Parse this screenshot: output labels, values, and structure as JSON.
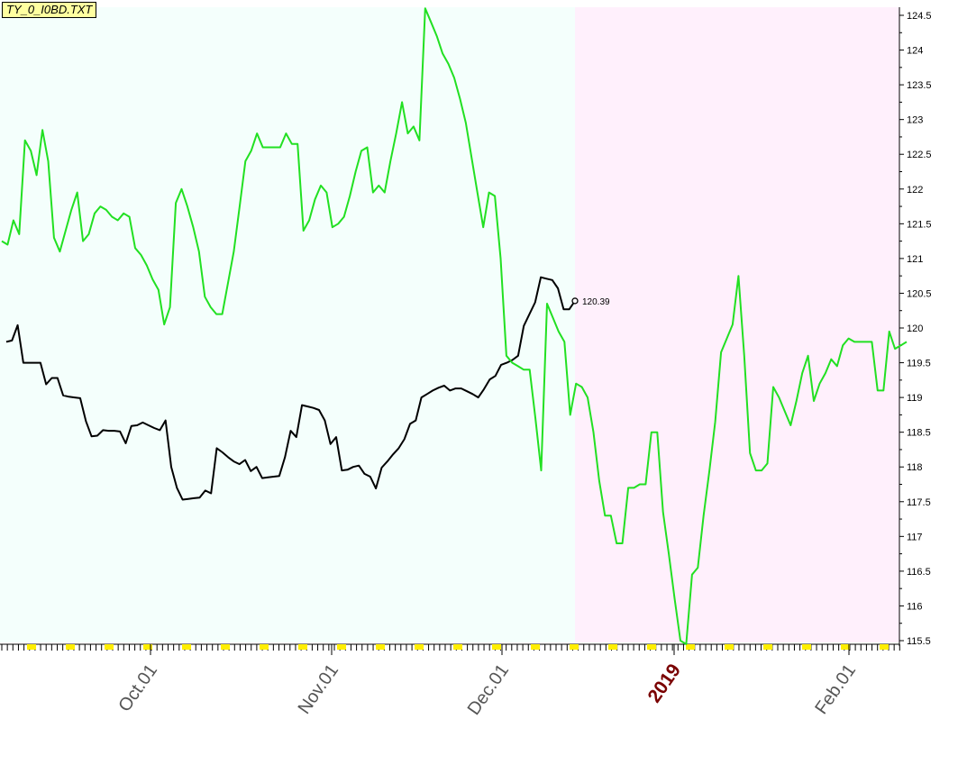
{
  "file_label": "TY_0_I0BD.TXT",
  "chart_data": {
    "type": "line",
    "title": "",
    "xlabel": "",
    "ylabel": "",
    "ylim": [
      115.5,
      124.6
    ],
    "y_ticks": [
      "115.5",
      "116",
      "116.5",
      "117",
      "117.5",
      "118",
      "118.5",
      "119",
      "119.5",
      "120",
      "120.5",
      "121",
      "121.5",
      "122",
      "122.5",
      "123",
      "123.5",
      "124",
      "124.5"
    ],
    "x_ticks": [
      {
        "label": "Oct.01",
        "year": false
      },
      {
        "label": "Nov.01",
        "year": false
      },
      {
        "label": "Dec.01",
        "year": false
      },
      {
        "label": "2019",
        "year": true
      },
      {
        "label": "Feb.01",
        "year": false
      }
    ],
    "regions": {
      "history_color": "#f4fffc",
      "projection_color": "#fff0fc"
    },
    "last_value_label": "120.39",
    "series": [
      {
        "color": "#000000",
        "values": [
          119.8,
          119.82,
          120.04,
          119.5,
          119.5,
          119.5,
          119.5,
          119.19,
          119.28,
          119.28,
          119.03,
          119.01,
          119.0,
          118.99,
          118.66,
          118.44,
          118.45,
          118.53,
          118.52,
          118.52,
          118.51,
          118.34,
          118.59,
          118.6,
          118.64,
          118.6,
          118.56,
          118.53,
          118.67,
          118.0,
          117.7,
          117.53,
          117.54,
          117.55,
          117.56,
          117.66,
          117.62,
          118.27,
          118.21,
          118.14,
          118.08,
          118.04,
          118.1,
          117.94,
          118.0,
          117.84,
          117.85,
          117.86,
          117.87,
          118.14,
          118.52,
          118.43,
          118.89,
          118.87,
          118.85,
          118.82,
          118.67,
          118.33,
          118.43,
          117.95,
          117.96,
          118.0,
          118.02,
          117.9,
          117.86,
          117.69,
          117.99,
          118.08,
          118.18,
          118.27,
          118.4,
          118.62,
          118.67,
          119.0,
          119.05,
          119.1,
          119.14,
          119.17,
          119.1,
          119.13,
          119.13,
          119.09,
          119.05,
          119.0,
          119.12,
          119.26,
          119.31,
          119.47,
          119.5,
          119.54,
          119.6,
          120.03,
          120.2,
          120.37,
          120.73,
          120.71,
          120.69,
          120.57,
          120.27,
          120.27,
          120.39
        ]
      },
      {
        "color": "#22e022",
        "values": [
          121.25,
          121.2,
          121.55,
          121.35,
          122.7,
          122.55,
          122.2,
          122.85,
          122.4,
          121.3,
          121.1,
          121.4,
          121.7,
          121.95,
          121.25,
          121.35,
          121.65,
          121.75,
          121.7,
          121.6,
          121.55,
          121.65,
          121.6,
          121.15,
          121.05,
          120.9,
          120.7,
          120.55,
          120.05,
          120.3,
          121.8,
          122.0,
          121.75,
          121.45,
          121.1,
          120.45,
          120.3,
          120.2,
          120.2,
          120.65,
          121.1,
          121.75,
          122.4,
          122.55,
          122.8,
          122.6,
          122.6,
          122.6,
          122.6,
          122.8,
          122.65,
          122.65,
          121.4,
          121.55,
          121.85,
          122.05,
          121.95,
          121.45,
          121.5,
          121.6,
          121.9,
          122.25,
          122.55,
          122.6,
          121.95,
          122.05,
          121.95,
          122.4,
          122.8,
          123.25,
          122.8,
          122.9,
          122.7,
          124.6,
          124.4,
          124.2,
          123.95,
          123.8,
          123.6,
          123.3,
          122.95,
          122.45,
          121.95,
          121.45,
          121.95,
          121.9,
          121.0,
          119.6,
          119.5,
          119.45,
          119.4,
          119.4,
          118.7,
          117.95,
          120.35,
          120.15,
          119.95,
          119.8,
          118.75,
          119.2,
          119.15,
          119.0,
          118.5,
          117.8,
          117.3,
          117.3,
          116.9,
          116.9,
          117.7,
          117.7,
          117.75,
          117.75,
          118.5,
          118.5,
          117.35,
          116.75,
          116.1,
          115.5,
          115.45,
          116.45,
          116.55,
          117.3,
          117.95,
          118.65,
          119.65,
          119.85,
          120.05,
          120.75,
          119.6,
          118.2,
          117.95,
          117.95,
          118.05,
          119.15,
          119.0,
          118.8,
          118.6,
          118.95,
          119.35,
          119.6,
          118.95,
          119.2,
          119.35,
          119.55,
          119.45,
          119.75,
          119.85,
          119.8,
          119.8,
          119.8,
          119.8,
          119.1,
          119.1,
          119.95,
          119.7,
          119.75,
          119.8
        ]
      }
    ]
  }
}
